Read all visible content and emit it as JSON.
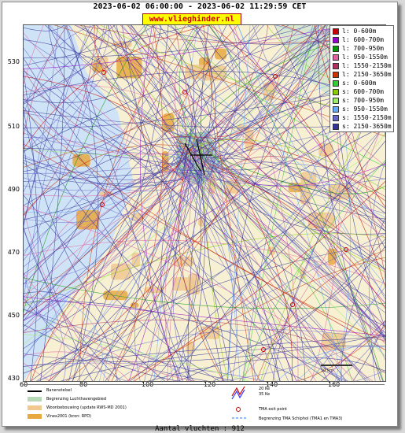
{
  "title": "2023-06-02 06:00:00 - 2023-06-02 11:29:59 CET",
  "url_badge": "www.vlieghinder.nl",
  "y_ticks": [
    "530",
    "510",
    "490",
    "470",
    "450",
    "430"
  ],
  "x_ticks": [
    "80",
    "100",
    "120",
    "140",
    "160"
  ],
  "corner_label": "60",
  "legend": [
    {
      "label": "l: 0-600m",
      "color": "#cc0000"
    },
    {
      "label": "l: 600-700m",
      "color": "#9900cc"
    },
    {
      "label": "l: 700-950m",
      "color": "#009900"
    },
    {
      "label": "l: 950-1550m",
      "color": "#e060a0"
    },
    {
      "label": "l: 1550-2150m",
      "color": "#b03060"
    },
    {
      "label": "l: 2150-3650m",
      "color": "#cc3300"
    },
    {
      "label": "s: 0-600m",
      "color": "#33cc33"
    },
    {
      "label": "s: 600-700m",
      "color": "#88cc00"
    },
    {
      "label": "s: 700-950m",
      "color": "#99ee66"
    },
    {
      "label": "s: 950-1550m",
      "color": "#66aaff"
    },
    {
      "label": "s: 1550-2150m",
      "color": "#6666cc"
    },
    {
      "label": "s: 2150-3650m",
      "color": "#333399"
    }
  ],
  "map_key": [
    {
      "label": "Banenstelsel",
      "color": "#000000"
    },
    {
      "label": "Begrenzing Luchthavengebied",
      "color": "#b8d8b8"
    },
    {
      "label": "Woonbebouwing (update RWS-MD 2001)",
      "color": "#f0c890"
    },
    {
      "label": "Vinex2001 (bron: RPD)",
      "color": "#e8a840"
    }
  ],
  "map_key_right": [
    {
      "label": "20 Ke",
      "color": "#cc0000"
    },
    {
      "label": "35 Ke",
      "color": "#3333ff"
    },
    {
      "label": "TMA exit point",
      "color": "#cc0000"
    },
    {
      "label": "Begrenzing TMA Schiphol  (TMA1 en TMA3)",
      "color": "#66aaff"
    }
  ],
  "scale_label": "10 km",
  "flight_count": "Aantal vluchten : 912",
  "colors": {
    "sea": "#cfe3f7",
    "land": "#f7f0d2",
    "urban": "#f0c890",
    "vinex": "#e8a840",
    "airport": "#b8d8b8"
  }
}
